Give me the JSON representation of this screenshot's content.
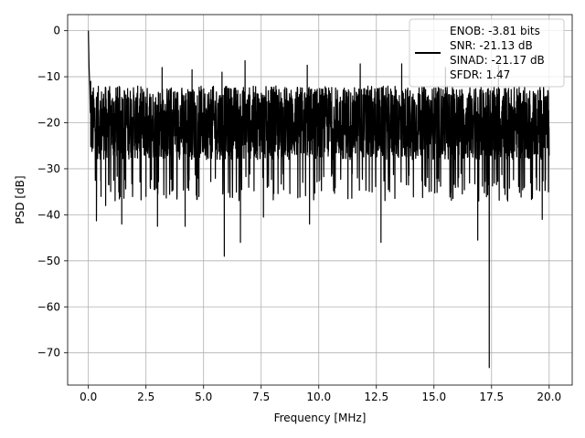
{
  "chart_data": {
    "type": "line",
    "title": "",
    "xlabel": "Frequency [MHz]",
    "ylabel": "PSD [dB]",
    "xlim": [
      -0.9,
      21.0
    ],
    "ylim": [
      -77,
      3.5
    ],
    "xticks": [
      0.0,
      2.5,
      5.0,
      7.5,
      10.0,
      12.5,
      15.0,
      17.5,
      20.0
    ],
    "xtick_labels": [
      "0.0",
      "2.5",
      "5.0",
      "7.5",
      "10.0",
      "12.5",
      "15.0",
      "17.5",
      "20.0"
    ],
    "yticks": [
      0,
      -10,
      -20,
      -30,
      -40,
      -50,
      -60,
      -70
    ],
    "ytick_labels": [
      "0",
      "−10",
      "−20",
      "−30",
      "−40",
      "−50",
      "−60",
      "−70"
    ],
    "grid": true,
    "legend_position": "top-right",
    "legend_entries": [
      "ENOB: -3.81 bits",
      "SNR: -21.13 dB",
      "SINAD: -21.17 dB",
      "SFDR: 1.47"
    ],
    "series": [
      {
        "color": "#000000",
        "x_range": [
          0.0,
          20.0
        ],
        "noise_band_db": [
          -28,
          -12
        ],
        "peak_points": [
          {
            "x": 0.0,
            "y": 0.0
          },
          {
            "x": 0.03,
            "y": -8.0
          },
          {
            "x": 0.06,
            "y": -12.0
          }
        ],
        "dip_points": [
          {
            "x": 0.35,
            "y": -41.3
          },
          {
            "x": 0.55,
            "y": -36.0
          },
          {
            "x": 0.75,
            "y": -38.0
          },
          {
            "x": 1.45,
            "y": -42.0
          },
          {
            "x": 2.5,
            "y": -36.0
          },
          {
            "x": 3.0,
            "y": -42.5
          },
          {
            "x": 4.2,
            "y": -42.5
          },
          {
            "x": 5.9,
            "y": -49.0
          },
          {
            "x": 6.6,
            "y": -46.0
          },
          {
            "x": 7.6,
            "y": -40.5
          },
          {
            "x": 9.6,
            "y": -42.0
          },
          {
            "x": 12.7,
            "y": -46.0
          },
          {
            "x": 16.9,
            "y": -45.5
          },
          {
            "x": 17.4,
            "y": -73.2
          },
          {
            "x": 19.7,
            "y": -41.0
          }
        ],
        "spike_points": [
          {
            "x": 0.1,
            "y": -11.0
          },
          {
            "x": 3.2,
            "y": -8.0
          },
          {
            "x": 4.5,
            "y": -8.5
          },
          {
            "x": 5.8,
            "y": -9.0
          },
          {
            "x": 6.8,
            "y": -6.5
          },
          {
            "x": 9.5,
            "y": -7.5
          },
          {
            "x": 11.8,
            "y": -7.2
          },
          {
            "x": 13.6,
            "y": -7.2
          },
          {
            "x": 15.5,
            "y": -8.0
          },
          {
            "x": 17.8,
            "y": -7.5
          }
        ]
      }
    ]
  }
}
